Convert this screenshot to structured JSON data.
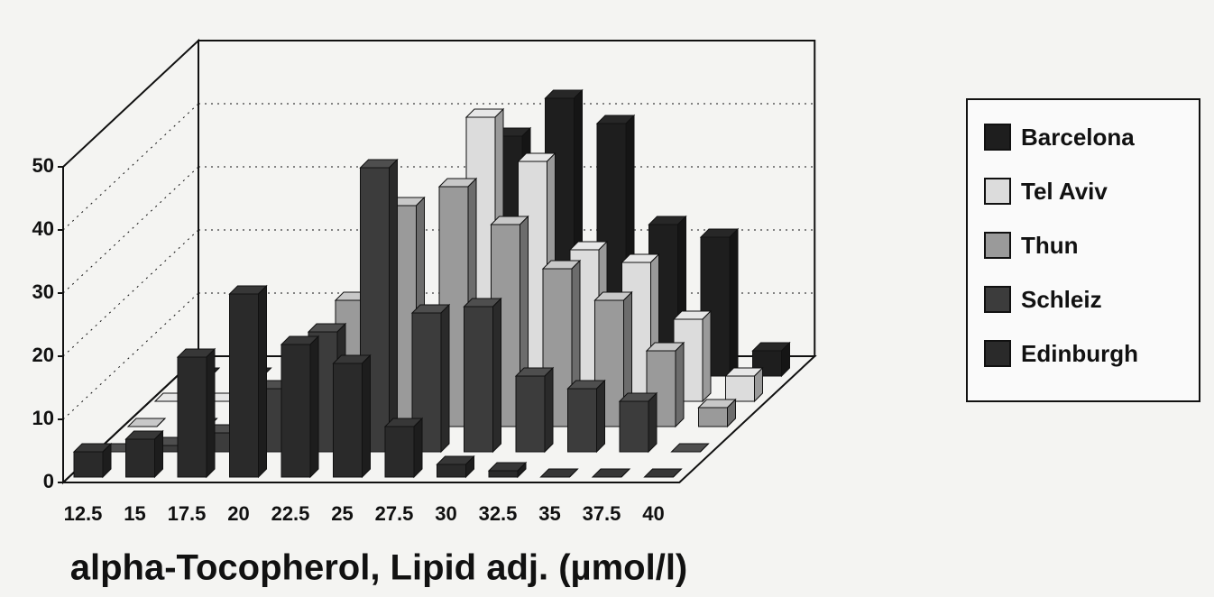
{
  "chart_data": {
    "type": "bar3d",
    "xlabel": "alpha-Tocopherol, Lipid adj. (µmol/l)",
    "categories": [
      "12.5",
      "15",
      "17.5",
      "20",
      "22.5",
      "25",
      "27.5",
      "30",
      "32.5",
      "35",
      "37.5",
      "40"
    ],
    "ylim": [
      0,
      50
    ],
    "yticks": [
      0,
      10,
      20,
      30,
      40,
      50
    ],
    "grid": true,
    "series": [
      {
        "name": "Barcelona",
        "color": "#1e1e1e",
        "values": [
          0,
          0,
          0,
          0,
          0,
          1,
          38,
          44,
          40,
          24,
          22,
          4
        ]
      },
      {
        "name": "Tel Aviv",
        "color": "#dcdcdc",
        "values": [
          0,
          0,
          0,
          1,
          2,
          5,
          45,
          38,
          24,
          22,
          13,
          4
        ]
      },
      {
        "name": "Thun",
        "color": "#9a9a9a",
        "values": [
          0,
          0,
          1,
          2,
          20,
          35,
          38,
          32,
          25,
          20,
          12,
          3
        ]
      },
      {
        "name": "Schleiz",
        "color": "#3c3c3c",
        "values": [
          0,
          1,
          3,
          10,
          19,
          45,
          22,
          23,
          12,
          10,
          8,
          0
        ]
      },
      {
        "name": "Edinburgh",
        "color": "#2a2a2a",
        "values": [
          4,
          6,
          19,
          29,
          21,
          18,
          8,
          2,
          1,
          0,
          0,
          0
        ]
      }
    ]
  }
}
